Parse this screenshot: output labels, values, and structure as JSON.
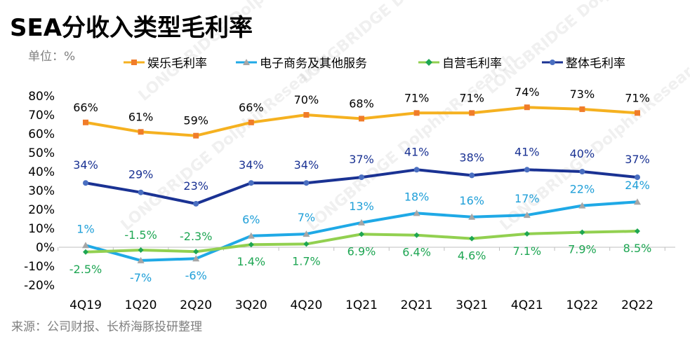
{
  "title": "SEA分收入类型毛利率",
  "unit_label": "单位：%",
  "source": "来源：公司财报、长桥海豚投研整理",
  "watermark": "LONGBRIDGE DolphinResearch",
  "chart_data": {
    "type": "line",
    "categories": [
      "4Q19",
      "1Q20",
      "2Q20",
      "3Q20",
      "4Q20",
      "1Q21",
      "2Q21",
      "3Q21",
      "4Q21",
      "1Q22",
      "2Q22"
    ],
    "ylim": [
      -20,
      80
    ],
    "yticks": [
      "80%",
      "70%",
      "60%",
      "50%",
      "40%",
      "30%",
      "20%",
      "10%",
      "0%",
      "-10%",
      "-20%"
    ],
    "series": [
      {
        "name": "娱乐毛利率",
        "color": "#f5b120",
        "marker": "square",
        "labelColor": "#000000",
        "labelPos": "above",
        "values": [
          66,
          61,
          59,
          66,
          70,
          68,
          71,
          71,
          74,
          73,
          71
        ],
        "labels": [
          "66%",
          "61%",
          "59%",
          "66%",
          "70%",
          "68%",
          "71%",
          "71%",
          "74%",
          "73%",
          "71%"
        ]
      },
      {
        "name": "电子商务及其他服务",
        "color": "#1fa9e6",
        "marker": "triangle",
        "labelColor": "#1f9fd8",
        "labelPos": "mixed",
        "values": [
          1,
          -7,
          -6,
          6,
          7,
          13,
          18,
          16,
          17,
          22,
          24
        ],
        "labels": [
          "1%",
          "-7%",
          "-6%",
          "6%",
          "7%",
          "13%",
          "18%",
          "16%",
          "17%",
          "22%",
          "24%"
        ]
      },
      {
        "name": "自营毛利率",
        "color": "#92d050",
        "marker": "diamond",
        "labelColor": "#1ea653",
        "labelPos": "mixed",
        "values": [
          -2.5,
          -1.5,
          -2.3,
          1.4,
          1.7,
          6.9,
          6.4,
          4.6,
          7.1,
          7.9,
          8.5
        ],
        "labels": [
          "-2.5%",
          "-1.5%",
          "-2.3%",
          "1.4%",
          "1.7%",
          "6.9%",
          "6.4%",
          "4.6%",
          "7.1%",
          "7.9%",
          "8.5%"
        ]
      },
      {
        "name": "整体毛利率",
        "color": "#1a3293",
        "marker": "circle",
        "labelColor": "#1a3293",
        "labelPos": "above",
        "values": [
          34,
          29,
          23,
          34,
          34,
          37,
          41,
          38,
          41,
          40,
          37
        ],
        "labels": [
          "34%",
          "29%",
          "23%",
          "34%",
          "34%",
          "37%",
          "41%",
          "38%",
          "41%",
          "40%",
          "37%"
        ]
      }
    ]
  }
}
